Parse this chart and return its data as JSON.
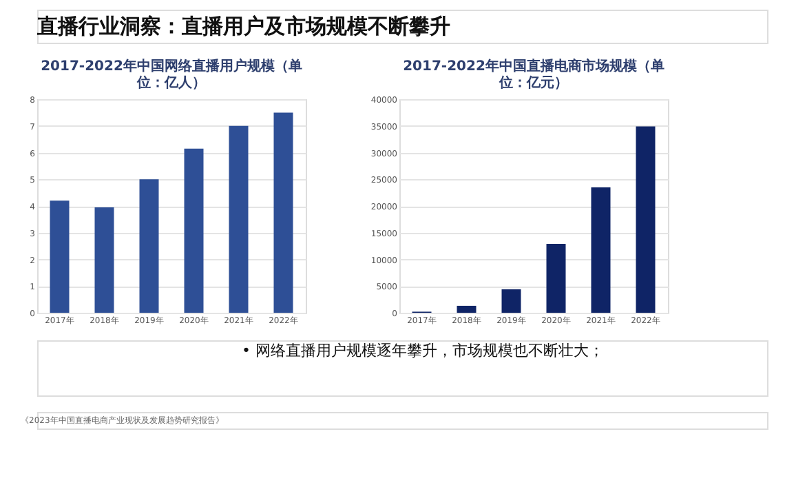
{
  "chart_data": [
    {
      "type": "bar",
      "title": "2017-2022年中国网络直播用户规模（单位：亿人）",
      "annotations": [
        "直播行业洞察：直播用户及市场规模不断攀升"
      ],
      "categories": [
        "2017年",
        "2018年",
        "2019年",
        "2020年",
        "2021年",
        "2022年"
      ],
      "values": [
        4.2,
        3.95,
        5.0,
        6.15,
        7.0,
        7.5
      ],
      "color": "#2e4f96",
      "ylim": [
        0,
        8
      ],
      "yticks": [
        0,
        1,
        2,
        3,
        4,
        5,
        6,
        7,
        8
      ],
      "grid": "y"
    },
    {
      "type": "bar",
      "title": "2017-2022年中国直播电商市场规模（单位：亿元）",
      "annotations": [
        "•  网络直播用户规模逐年攀升，市场规模也不断壮大；",
        "《2023年中国直播电商产业现状及发展趋势研究报告》"
      ],
      "categories": [
        "2017年",
        "2018年",
        "2019年",
        "2020年",
        "2021年",
        "2022年"
      ],
      "values": [
        200,
        1300,
        4400,
        12900,
        23500,
        34900
      ],
      "color": "#0f2466",
      "ylim": [
        0,
        40000
      ],
      "yticks": [
        0,
        5000,
        10000,
        15000,
        20000,
        25000,
        30000,
        35000,
        40000
      ],
      "grid": "y"
    }
  ]
}
